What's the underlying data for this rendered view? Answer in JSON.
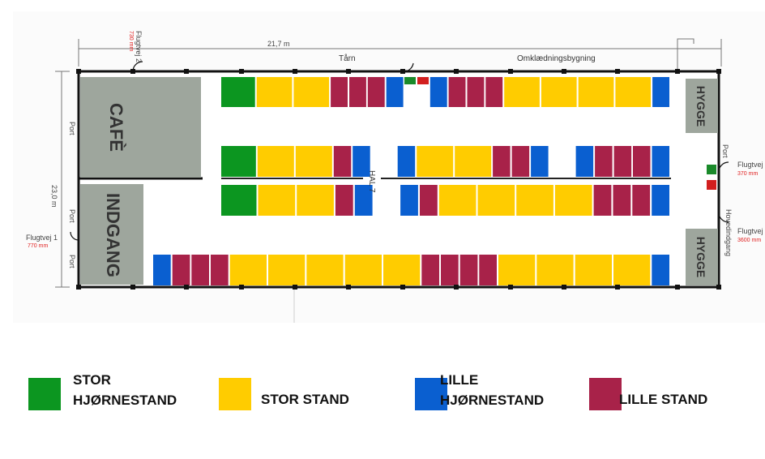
{
  "plan": {
    "width_dim": "21,7 m",
    "height_dim": "23,0 m",
    "hall_label": "HAL 7",
    "top_labels": {
      "tarn": "Tårn",
      "omkl": "Omklædningsbygning"
    },
    "zones": {
      "cafe": "CAFÈ",
      "indgang": "INDGANG",
      "hygge_top": "HYGGE",
      "hygge_bottom": "HYGGE"
    },
    "port_label": "Port",
    "flugtvej_top": {
      "name": "Flugtvej 2",
      "size": "730 mm"
    },
    "flugtvej_left": {
      "name": "Flugtvej 1",
      "size": "770 mm"
    },
    "flugtvej_right1": {
      "name": "Flugtvej",
      "size": "370 mm"
    },
    "flugtvej_right2": {
      "name": "Flugtvej",
      "size": "3600 mm"
    },
    "right_port_label": "Port",
    "hovedindgang": "Hovedindgang",
    "exit_sign": "→ ▮",
    "colors": {
      "stor_hjorne": "#0c9620",
      "stor": "#ffcc00",
      "lille_hjorne": "#0a5fd0",
      "lille": "#a82249",
      "zone": "#9ea69d"
    },
    "rows": [
      [
        "SH",
        "S",
        "S",
        "L",
        "L",
        "L",
        "LH",
        "gap",
        "LH",
        "L",
        "L",
        "L",
        "S",
        "S",
        "S",
        "S",
        "LH"
      ],
      [
        "SH",
        "S",
        "S",
        "L",
        "LH",
        "gap",
        "LH",
        "S",
        "S",
        "L",
        "L",
        "LH",
        "gap",
        "LH",
        "L",
        "L",
        "L",
        "LH"
      ],
      [
        "SH",
        "S",
        "S",
        "L",
        "LH",
        "gap",
        "LH",
        "L",
        "S",
        "S",
        "S",
        "S",
        "L",
        "L",
        "L",
        "LH"
      ],
      [
        "LH",
        "L",
        "L",
        "L",
        "S",
        "S",
        "S",
        "S",
        "S",
        "L",
        "L",
        "L",
        "L",
        "S",
        "S",
        "S",
        "S",
        "LH"
      ]
    ]
  },
  "legend": [
    {
      "key": "stor_hjorne",
      "label_line1": "STOR",
      "label_line2": "HJØRNESTAND",
      "color": "#0c9620"
    },
    {
      "key": "stor",
      "label_line1": "",
      "label_line2": "STOR STAND",
      "color": "#ffcc00"
    },
    {
      "key": "lille_hjorne",
      "label_line1": "LILLE",
      "label_line2": "HJØRNESTAND",
      "color": "#0a5fd0"
    },
    {
      "key": "lille",
      "label_line1": "",
      "label_line2": "LILLE STAND",
      "color": "#a82249"
    }
  ]
}
